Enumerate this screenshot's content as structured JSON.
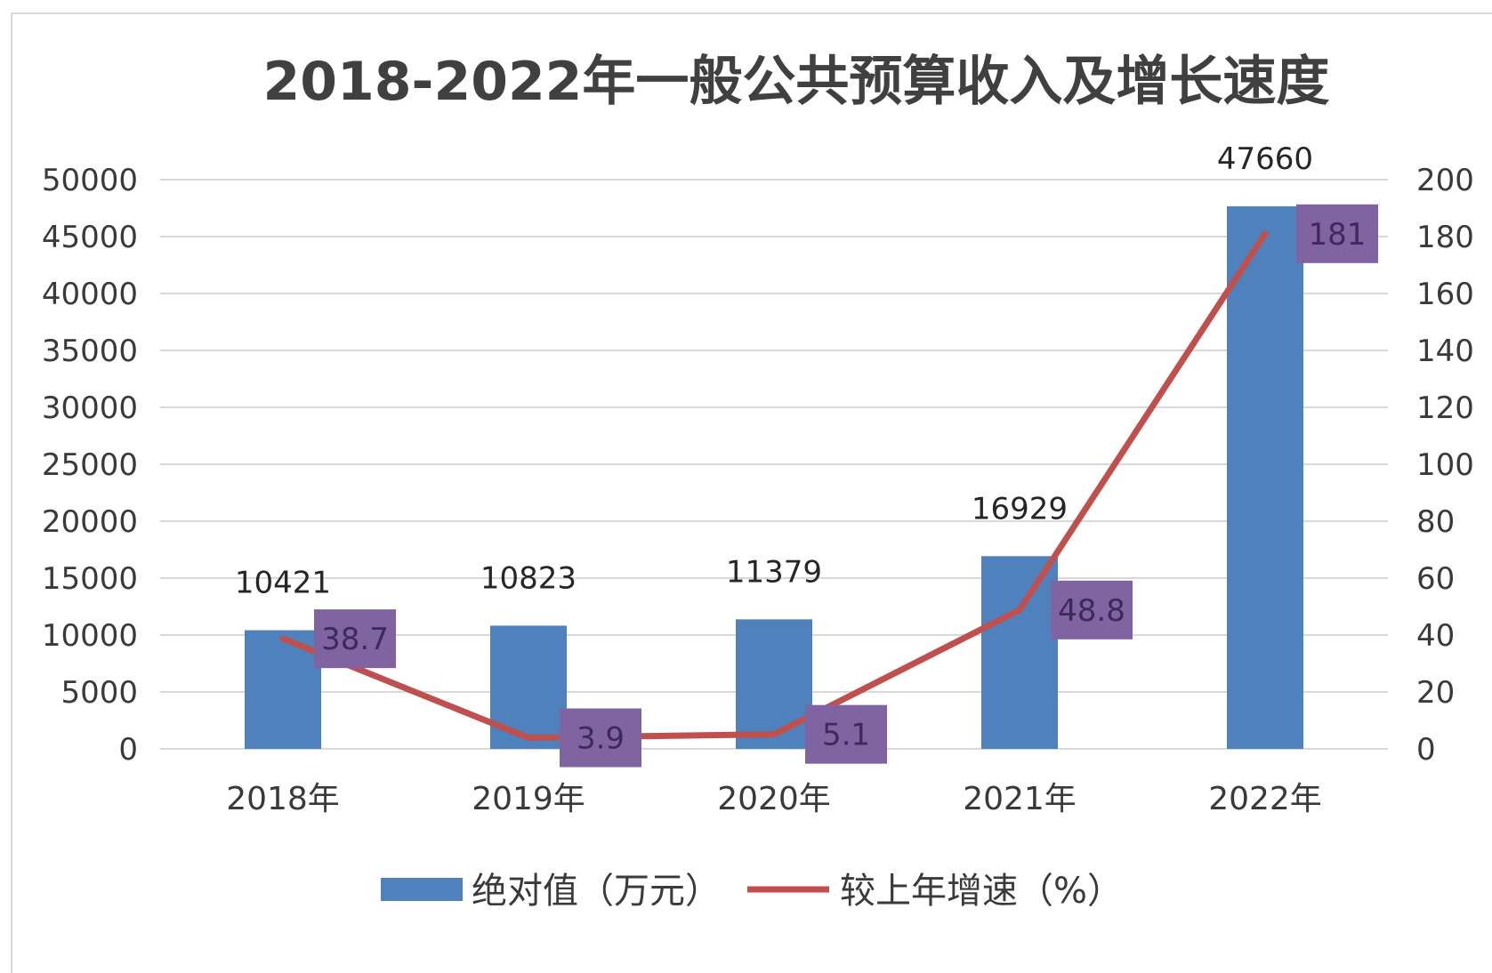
{
  "chart_data": {
    "type": "bar",
    "title": "2018-2022年一般公共预算收入及增长速度",
    "categories": [
      "2018年",
      "2019年",
      "2020年",
      "2021年",
      "2022年"
    ],
    "series": [
      {
        "name": "绝对值（万元）",
        "type": "bar",
        "axis": "left",
        "color": "#4f81bd",
        "values": [
          10421,
          10823,
          11379,
          16929,
          47660
        ],
        "labels": [
          "10421",
          "10823",
          "11379",
          "16929",
          "47660"
        ]
      },
      {
        "name": "较上年增速（%）",
        "type": "line",
        "axis": "right",
        "color": "#c0504d",
        "values": [
          38.7,
          3.9,
          5.1,
          48.8,
          181
        ],
        "labels": [
          "38.7",
          "3.9",
          "5.1",
          "48.8",
          "181"
        ],
        "label_background": "#8064a2"
      }
    ],
    "y_left": {
      "lim": [
        0,
        50000
      ],
      "ticks": [
        "0",
        "5000",
        "10000",
        "15000",
        "20000",
        "25000",
        "30000",
        "35000",
        "40000",
        "45000",
        "50000"
      ]
    },
    "y_right": {
      "lim": [
        0,
        200
      ],
      "ticks": [
        "0",
        "20",
        "40",
        "60",
        "80",
        "100",
        "120",
        "140",
        "160",
        "180",
        "200"
      ]
    },
    "grid": true,
    "legend": "bottom"
  }
}
